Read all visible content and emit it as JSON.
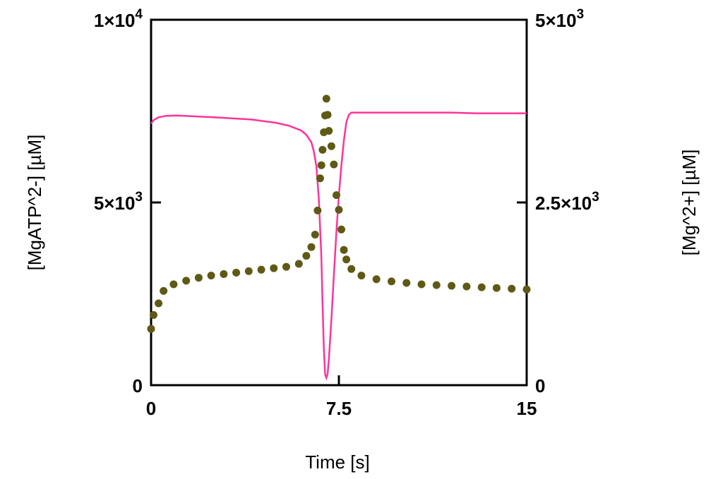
{
  "chart_data": {
    "type": "line",
    "xlabel": "Time [s]",
    "ylabel_left": "[MgATP^2-]  [µM]",
    "ylabel_right": "[Mg^2+] [µM]",
    "xlim": [
      0,
      15
    ],
    "ylim_left": [
      0,
      10000
    ],
    "ylim_right": [
      0,
      5000
    ],
    "grid": false,
    "x_ticks": [
      {
        "value": 0,
        "label": "0"
      },
      {
        "value": 7.5,
        "label": "7.5"
      },
      {
        "value": 15,
        "label": "15"
      }
    ],
    "y_ticks_left": [
      {
        "value": 0,
        "label": "0",
        "mantissa": "",
        "exponent": ""
      },
      {
        "value": 5000,
        "label": "5×10^3",
        "mantissa": "5×10",
        "exponent": "3"
      },
      {
        "value": 10000,
        "label": "1×10^4",
        "mantissa": "1×10",
        "exponent": "4"
      }
    ],
    "y_ticks_right": [
      {
        "value": 0,
        "label": "0",
        "mantissa": "",
        "exponent": ""
      },
      {
        "value": 2500,
        "label": "2.5×10^3",
        "mantissa": "2.5×10",
        "exponent": "3"
      },
      {
        "value": 5000,
        "label": "5×10^3",
        "mantissa": "5×10",
        "exponent": "3"
      }
    ],
    "series": [
      {
        "axis": "left",
        "style": "line",
        "color": "#ff3399",
        "x": [
          0,
          0.1,
          0.3,
          0.6,
          1.0,
          2.5,
          4.0,
          5.0,
          5.5,
          6.0,
          6.2,
          6.4,
          6.5,
          6.6,
          6.7,
          6.8,
          6.85,
          6.9,
          6.95,
          7.0,
          7.05,
          7.1,
          7.2,
          7.3,
          7.4,
          7.5,
          7.6,
          7.7,
          7.8,
          7.9,
          8.0,
          10.0,
          12.0,
          13.0,
          15.0
        ],
        "values": [
          7160,
          7250,
          7330,
          7370,
          7380,
          7330,
          7270,
          7180,
          7100,
          6970,
          6850,
          6650,
          6400,
          6000,
          5100,
          3500,
          2200,
          1000,
          300,
          200,
          300,
          700,
          1800,
          3000,
          4200,
          5200,
          6000,
          6700,
          7200,
          7400,
          7460,
          7460,
          7460,
          7440,
          7440
        ]
      },
      {
        "axis": "right",
        "style": "dots",
        "color": "#5e5a16",
        "x": [
          0,
          0.1,
          0.3,
          0.5,
          0.9,
          1.4,
          1.9,
          2.4,
          2.9,
          3.4,
          3.9,
          4.4,
          4.9,
          5.4,
          5.9,
          6.2,
          6.4,
          6.55,
          6.65,
          6.75,
          6.8,
          6.85,
          6.9,
          6.95,
          7.0,
          7.05,
          7.1,
          7.2,
          7.3,
          7.4,
          7.5,
          7.6,
          7.7,
          7.8,
          8.0,
          8.4,
          9.0,
          9.6,
          10.2,
          10.8,
          11.4,
          12.0,
          12.6,
          13.2,
          13.8,
          14.4,
          15.0
        ],
        "values": [
          770,
          960,
          1120,
          1290,
          1380,
          1430,
          1470,
          1500,
          1520,
          1540,
          1560,
          1580,
          1600,
          1620,
          1660,
          1770,
          1890,
          2060,
          2390,
          2830,
          3010,
          3220,
          3460,
          3690,
          3920,
          3700,
          3480,
          3270,
          3020,
          2600,
          2400,
          2130,
          1850,
          1720,
          1590,
          1500,
          1450,
          1420,
          1400,
          1380,
          1370,
          1360,
          1350,
          1340,
          1330,
          1320,
          1310
        ]
      }
    ]
  }
}
